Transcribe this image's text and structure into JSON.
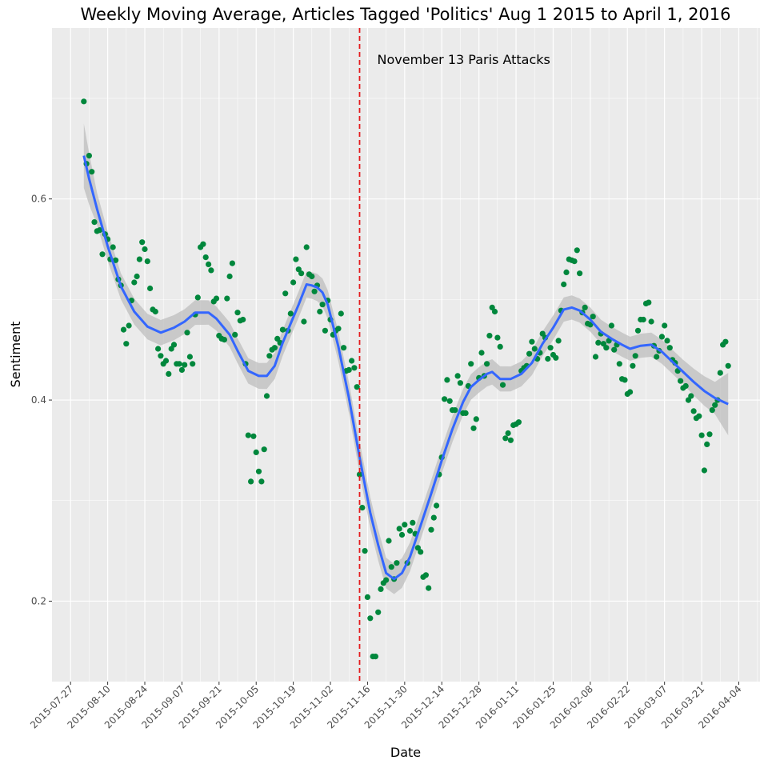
{
  "chart_data": {
    "type": "scatter",
    "title": "Weekly Moving Average, Articles Tagged 'Politics' Aug 1 2015 to April 1, 2016",
    "xlabel": "Date",
    "ylabel": "Sentiment",
    "xlim": [
      "2015-07-20",
      "2016-04-12"
    ],
    "ylim": [
      0.12,
      0.77
    ],
    "x_ticks": [
      "2015-07-27",
      "2015-08-10",
      "2015-08-24",
      "2015-09-07",
      "2015-09-21",
      "2015-10-05",
      "2015-10-19",
      "2015-11-02",
      "2015-11-16",
      "2015-11-30",
      "2015-12-14",
      "2015-12-28",
      "2016-01-11",
      "2016-01-25",
      "2016-02-08",
      "2016-02-22",
      "2016-03-07",
      "2016-03-21",
      "2016-04-04"
    ],
    "y_ticks": [
      0.2,
      0.4,
      0.6
    ],
    "y_tick_labels": [
      "0.2",
      "0.4",
      "0.6"
    ],
    "background": "#ebebeb",
    "grid": true,
    "colors": {
      "points": "#00873c",
      "smooth": "#3366ff",
      "ribbon": "#bdbdbd",
      "vline": "#e41a1c"
    },
    "vline": {
      "x": "2015-11-13",
      "label": "November 13 Paris Attacks",
      "style": "dashed"
    },
    "points": [
      [
        "2015-08-01",
        0.697
      ],
      [
        "2015-08-02",
        0.635
      ],
      [
        "2015-08-03",
        0.643
      ],
      [
        "2015-08-04",
        0.627
      ],
      [
        "2015-08-05",
        0.577
      ],
      [
        "2015-08-06",
        0.568
      ],
      [
        "2015-08-07",
        0.569
      ],
      [
        "2015-08-08",
        0.545
      ],
      [
        "2015-08-09",
        0.565
      ],
      [
        "2015-08-10",
        0.56
      ],
      [
        "2015-08-11",
        0.54
      ],
      [
        "2015-08-12",
        0.552
      ],
      [
        "2015-08-13",
        0.539
      ],
      [
        "2015-08-14",
        0.52
      ],
      [
        "2015-08-15",
        0.514
      ],
      [
        "2015-08-16",
        0.47
      ],
      [
        "2015-08-17",
        0.456
      ],
      [
        "2015-08-18",
        0.474
      ],
      [
        "2015-08-19",
        0.499
      ],
      [
        "2015-08-20",
        0.517
      ],
      [
        "2015-08-21",
        0.523
      ],
      [
        "2015-08-22",
        0.54
      ],
      [
        "2015-08-23",
        0.557
      ],
      [
        "2015-08-24",
        0.55
      ],
      [
        "2015-08-25",
        0.538
      ],
      [
        "2015-08-26",
        0.511
      ],
      [
        "2015-08-27",
        0.49
      ],
      [
        "2015-08-28",
        0.488
      ],
      [
        "2015-08-29",
        0.451
      ],
      [
        "2015-08-30",
        0.444
      ],
      [
        "2015-08-31",
        0.436
      ],
      [
        "2015-09-01",
        0.439
      ],
      [
        "2015-09-02",
        0.426
      ],
      [
        "2015-09-03",
        0.451
      ],
      [
        "2015-09-04",
        0.455
      ],
      [
        "2015-09-05",
        0.436
      ],
      [
        "2015-09-06",
        0.436
      ],
      [
        "2015-09-07",
        0.43
      ],
      [
        "2015-09-08",
        0.435
      ],
      [
        "2015-09-09",
        0.467
      ],
      [
        "2015-09-10",
        0.443
      ],
      [
        "2015-09-11",
        0.436
      ],
      [
        "2015-09-12",
        0.485
      ],
      [
        "2015-09-13",
        0.502
      ],
      [
        "2015-09-14",
        0.552
      ],
      [
        "2015-09-15",
        0.555
      ],
      [
        "2015-09-16",
        0.542
      ],
      [
        "2015-09-17",
        0.535
      ],
      [
        "2015-09-18",
        0.529
      ],
      [
        "2015-09-19",
        0.498
      ],
      [
        "2015-09-20",
        0.501
      ],
      [
        "2015-09-21",
        0.464
      ],
      [
        "2015-09-22",
        0.461
      ],
      [
        "2015-09-23",
        0.46
      ],
      [
        "2015-09-24",
        0.501
      ],
      [
        "2015-09-25",
        0.523
      ],
      [
        "2015-09-26",
        0.536
      ],
      [
        "2015-09-27",
        0.465
      ],
      [
        "2015-09-28",
        0.487
      ],
      [
        "2015-09-29",
        0.479
      ],
      [
        "2015-09-30",
        0.48
      ],
      [
        "2015-10-01",
        0.436
      ],
      [
        "2015-10-02",
        0.365
      ],
      [
        "2015-10-03",
        0.319
      ],
      [
        "2015-10-04",
        0.364
      ],
      [
        "2015-10-05",
        0.348
      ],
      [
        "2015-10-06",
        0.329
      ],
      [
        "2015-10-07",
        0.319
      ],
      [
        "2015-10-08",
        0.351
      ],
      [
        "2015-10-09",
        0.404
      ],
      [
        "2015-10-10",
        0.444
      ],
      [
        "2015-10-11",
        0.45
      ],
      [
        "2015-10-12",
        0.452
      ],
      [
        "2015-10-13",
        0.461
      ],
      [
        "2015-10-14",
        0.457
      ],
      [
        "2015-10-15",
        0.47
      ],
      [
        "2015-10-16",
        0.506
      ],
      [
        "2015-10-17",
        0.469
      ],
      [
        "2015-10-18",
        0.486
      ],
      [
        "2015-10-19",
        0.517
      ],
      [
        "2015-10-20",
        0.54
      ],
      [
        "2015-10-21",
        0.53
      ],
      [
        "2015-10-22",
        0.526
      ],
      [
        "2015-10-23",
        0.478
      ],
      [
        "2015-10-24",
        0.552
      ],
      [
        "2015-10-25",
        0.525
      ],
      [
        "2015-10-26",
        0.523
      ],
      [
        "2015-10-27",
        0.508
      ],
      [
        "2015-10-28",
        0.514
      ],
      [
        "2015-10-29",
        0.488
      ],
      [
        "2015-10-30",
        0.495
      ],
      [
        "2015-10-31",
        0.469
      ],
      [
        "2015-11-01",
        0.499
      ],
      [
        "2015-11-02",
        0.48
      ],
      [
        "2015-11-03",
        0.465
      ],
      [
        "2015-11-04",
        0.469
      ],
      [
        "2015-11-05",
        0.471
      ],
      [
        "2015-11-06",
        0.486
      ],
      [
        "2015-11-07",
        0.452
      ],
      [
        "2015-11-08",
        0.429
      ],
      [
        "2015-11-09",
        0.43
      ],
      [
        "2015-11-10",
        0.439
      ],
      [
        "2015-11-11",
        0.432
      ],
      [
        "2015-11-12",
        0.413
      ],
      [
        "2015-11-13",
        0.326
      ],
      [
        "2015-11-14",
        0.293
      ],
      [
        "2015-11-15",
        0.25
      ],
      [
        "2015-11-16",
        0.204
      ],
      [
        "2015-11-17",
        0.183
      ],
      [
        "2015-11-18",
        0.145
      ],
      [
        "2015-11-19",
        0.145
      ],
      [
        "2015-11-20",
        0.189
      ],
      [
        "2015-11-21",
        0.212
      ],
      [
        "2015-11-22",
        0.218
      ],
      [
        "2015-11-23",
        0.221
      ],
      [
        "2015-11-24",
        0.26
      ],
      [
        "2015-11-25",
        0.234
      ],
      [
        "2015-11-26",
        0.222
      ],
      [
        "2015-11-27",
        0.238
      ],
      [
        "2015-11-28",
        0.272
      ],
      [
        "2015-11-29",
        0.266
      ],
      [
        "2015-11-30",
        0.276
      ],
      [
        "2015-12-01",
        0.238
      ],
      [
        "2015-12-02",
        0.27
      ],
      [
        "2015-12-03",
        0.278
      ],
      [
        "2015-12-04",
        0.267
      ],
      [
        "2015-12-05",
        0.253
      ],
      [
        "2015-12-06",
        0.249
      ],
      [
        "2015-12-07",
        0.224
      ],
      [
        "2015-12-08",
        0.226
      ],
      [
        "2015-12-09",
        0.213
      ],
      [
        "2015-12-10",
        0.271
      ],
      [
        "2015-12-11",
        0.283
      ],
      [
        "2015-12-12",
        0.295
      ],
      [
        "2015-12-13",
        0.326
      ],
      [
        "2015-12-14",
        0.343
      ],
      [
        "2015-12-15",
        0.401
      ],
      [
        "2015-12-16",
        0.42
      ],
      [
        "2015-12-17",
        0.399
      ],
      [
        "2015-12-18",
        0.39
      ],
      [
        "2015-12-19",
        0.39
      ],
      [
        "2015-12-20",
        0.424
      ],
      [
        "2015-12-21",
        0.417
      ],
      [
        "2015-12-22",
        0.387
      ],
      [
        "2015-12-23",
        0.387
      ],
      [
        "2015-12-24",
        0.414
      ],
      [
        "2015-12-25",
        0.436
      ],
      [
        "2015-12-26",
        0.372
      ],
      [
        "2015-12-27",
        0.381
      ],
      [
        "2015-12-28",
        0.422
      ],
      [
        "2015-12-29",
        0.447
      ],
      [
        "2015-12-30",
        0.424
      ],
      [
        "2015-12-31",
        0.436
      ],
      [
        "2016-01-01",
        0.464
      ],
      [
        "2016-01-02",
        0.492
      ],
      [
        "2016-01-03",
        0.488
      ],
      [
        "2016-01-04",
        0.462
      ],
      [
        "2016-01-05",
        0.453
      ],
      [
        "2016-01-06",
        0.415
      ],
      [
        "2016-01-07",
        0.362
      ],
      [
        "2016-01-08",
        0.367
      ],
      [
        "2016-01-09",
        0.36
      ],
      [
        "2016-01-10",
        0.375
      ],
      [
        "2016-01-11",
        0.376
      ],
      [
        "2016-01-12",
        0.378
      ],
      [
        "2016-01-13",
        0.429
      ],
      [
        "2016-01-14",
        0.432
      ],
      [
        "2016-01-15",
        0.434
      ],
      [
        "2016-01-16",
        0.446
      ],
      [
        "2016-01-17",
        0.458
      ],
      [
        "2016-01-18",
        0.451
      ],
      [
        "2016-01-19",
        0.441
      ],
      [
        "2016-01-20",
        0.447
      ],
      [
        "2016-01-21",
        0.466
      ],
      [
        "2016-01-22",
        0.462
      ],
      [
        "2016-01-23",
        0.441
      ],
      [
        "2016-01-24",
        0.452
      ],
      [
        "2016-01-25",
        0.445
      ],
      [
        "2016-01-26",
        0.442
      ],
      [
        "2016-01-27",
        0.459
      ],
      [
        "2016-01-28",
        0.489
      ],
      [
        "2016-01-29",
        0.515
      ],
      [
        "2016-01-30",
        0.527
      ],
      [
        "2016-01-31",
        0.54
      ],
      [
        "2016-02-01",
        0.539
      ],
      [
        "2016-02-02",
        0.538
      ],
      [
        "2016-02-03",
        0.549
      ],
      [
        "2016-02-04",
        0.526
      ],
      [
        "2016-02-05",
        0.487
      ],
      [
        "2016-02-06",
        0.492
      ],
      [
        "2016-02-07",
        0.476
      ],
      [
        "2016-02-08",
        0.475
      ],
      [
        "2016-02-09",
        0.483
      ],
      [
        "2016-02-10",
        0.443
      ],
      [
        "2016-02-11",
        0.457
      ],
      [
        "2016-02-12",
        0.466
      ],
      [
        "2016-02-13",
        0.456
      ],
      [
        "2016-02-14",
        0.452
      ],
      [
        "2016-02-15",
        0.459
      ],
      [
        "2016-02-16",
        0.474
      ],
      [
        "2016-02-17",
        0.45
      ],
      [
        "2016-02-18",
        0.455
      ],
      [
        "2016-02-19",
        0.436
      ],
      [
        "2016-02-20",
        0.421
      ],
      [
        "2016-02-21",
        0.42
      ],
      [
        "2016-02-22",
        0.406
      ],
      [
        "2016-02-23",
        0.408
      ],
      [
        "2016-02-24",
        0.434
      ],
      [
        "2016-02-25",
        0.444
      ],
      [
        "2016-02-26",
        0.469
      ],
      [
        "2016-02-27",
        0.48
      ],
      [
        "2016-02-28",
        0.48
      ],
      [
        "2016-02-29",
        0.496
      ],
      [
        "2016-03-01",
        0.497
      ],
      [
        "2016-03-02",
        0.478
      ],
      [
        "2016-03-03",
        0.454
      ],
      [
        "2016-03-04",
        0.443
      ],
      [
        "2016-03-05",
        0.449
      ],
      [
        "2016-03-06",
        0.463
      ],
      [
        "2016-03-07",
        0.474
      ],
      [
        "2016-03-08",
        0.459
      ],
      [
        "2016-03-09",
        0.452
      ],
      [
        "2016-03-10",
        0.44
      ],
      [
        "2016-03-11",
        0.437
      ],
      [
        "2016-03-12",
        0.429
      ],
      [
        "2016-03-13",
        0.419
      ],
      [
        "2016-03-14",
        0.412
      ],
      [
        "2016-03-15",
        0.414
      ],
      [
        "2016-03-16",
        0.4
      ],
      [
        "2016-03-17",
        0.404
      ],
      [
        "2016-03-18",
        0.389
      ],
      [
        "2016-03-19",
        0.382
      ],
      [
        "2016-03-20",
        0.384
      ],
      [
        "2016-03-21",
        0.365
      ],
      [
        "2016-03-22",
        0.33
      ],
      [
        "2016-03-23",
        0.356
      ],
      [
        "2016-03-24",
        0.366
      ],
      [
        "2016-03-25",
        0.39
      ],
      [
        "2016-03-26",
        0.395
      ],
      [
        "2016-03-27",
        0.4
      ],
      [
        "2016-03-28",
        0.427
      ],
      [
        "2016-03-29",
        0.455
      ],
      [
        "2016-03-30",
        0.458
      ],
      [
        "2016-03-31",
        0.434
      ]
    ],
    "smooth": [
      [
        "2015-08-01",
        0.643
      ],
      [
        "2015-08-03",
        0.62
      ],
      [
        "2015-08-06",
        0.59
      ],
      [
        "2015-08-10",
        0.553
      ],
      [
        "2015-08-15",
        0.513
      ],
      [
        "2015-08-20",
        0.488
      ],
      [
        "2015-08-25",
        0.473
      ],
      [
        "2015-08-30",
        0.467
      ],
      [
        "2015-09-04",
        0.472
      ],
      [
        "2015-09-08",
        0.478
      ],
      [
        "2015-09-12",
        0.487
      ],
      [
        "2015-09-17",
        0.487
      ],
      [
        "2015-09-20",
        0.481
      ],
      [
        "2015-09-25",
        0.465
      ],
      [
        "2015-09-28",
        0.449
      ],
      [
        "2015-10-02",
        0.429
      ],
      [
        "2015-10-06",
        0.424
      ],
      [
        "2015-10-09",
        0.424
      ],
      [
        "2015-10-12",
        0.434
      ],
      [
        "2015-10-15",
        0.457
      ],
      [
        "2015-10-18",
        0.476
      ],
      [
        "2015-10-21",
        0.495
      ],
      [
        "2015-10-24",
        0.515
      ],
      [
        "2015-10-26",
        0.514
      ],
      [
        "2015-10-28",
        0.512
      ],
      [
        "2015-10-30",
        0.507
      ],
      [
        "2015-11-01",
        0.495
      ],
      [
        "2015-11-05",
        0.453
      ],
      [
        "2015-11-09",
        0.402
      ],
      [
        "2015-11-13",
        0.343
      ],
      [
        "2015-11-17",
        0.288
      ],
      [
        "2015-11-20",
        0.256
      ],
      [
        "2015-11-23",
        0.228
      ],
      [
        "2015-11-26",
        0.222
      ],
      [
        "2015-11-29",
        0.228
      ],
      [
        "2015-12-02",
        0.244
      ],
      [
        "2015-12-06",
        0.275
      ],
      [
        "2015-12-10",
        0.307
      ],
      [
        "2015-12-14",
        0.34
      ],
      [
        "2015-12-18",
        0.371
      ],
      [
        "2015-12-22",
        0.398
      ],
      [
        "2015-12-25",
        0.413
      ],
      [
        "2015-12-28",
        0.42
      ],
      [
        "2015-12-31",
        0.426
      ],
      [
        "2016-01-02",
        0.428
      ],
      [
        "2016-01-05",
        0.421
      ],
      [
        "2016-01-09",
        0.421
      ],
      [
        "2016-01-13",
        0.426
      ],
      [
        "2016-01-17",
        0.437
      ],
      [
        "2016-01-21",
        0.456
      ],
      [
        "2016-01-25",
        0.472
      ],
      [
        "2016-01-29",
        0.49
      ],
      [
        "2016-02-01",
        0.492
      ],
      [
        "2016-02-04",
        0.489
      ],
      [
        "2016-02-08",
        0.48
      ],
      [
        "2016-02-12",
        0.468
      ],
      [
        "2016-02-16",
        0.461
      ],
      [
        "2016-02-20",
        0.455
      ],
      [
        "2016-02-23",
        0.451
      ],
      [
        "2016-02-27",
        0.454
      ],
      [
        "2016-03-02",
        0.455
      ],
      [
        "2016-03-06",
        0.448
      ],
      [
        "2016-03-10",
        0.438
      ],
      [
        "2016-03-14",
        0.428
      ],
      [
        "2016-03-18",
        0.418
      ],
      [
        "2016-03-22",
        0.409
      ],
      [
        "2016-03-26",
        0.402
      ],
      [
        "2016-03-31",
        0.396
      ]
    ],
    "ribbon_halfwidth": [
      [
        "2015-08-01",
        0.032
      ],
      [
        "2015-08-06",
        0.016
      ],
      [
        "2015-08-15",
        0.013
      ],
      [
        "2015-09-20",
        0.012
      ],
      [
        "2015-10-09",
        0.013
      ],
      [
        "2015-10-24",
        0.013
      ],
      [
        "2015-11-13",
        0.016
      ],
      [
        "2015-11-26",
        0.015
      ],
      [
        "2015-12-14",
        0.013
      ],
      [
        "2016-02-01",
        0.012
      ],
      [
        "2016-03-14",
        0.012
      ],
      [
        "2016-03-26",
        0.016
      ],
      [
        "2016-03-31",
        0.031
      ]
    ]
  }
}
